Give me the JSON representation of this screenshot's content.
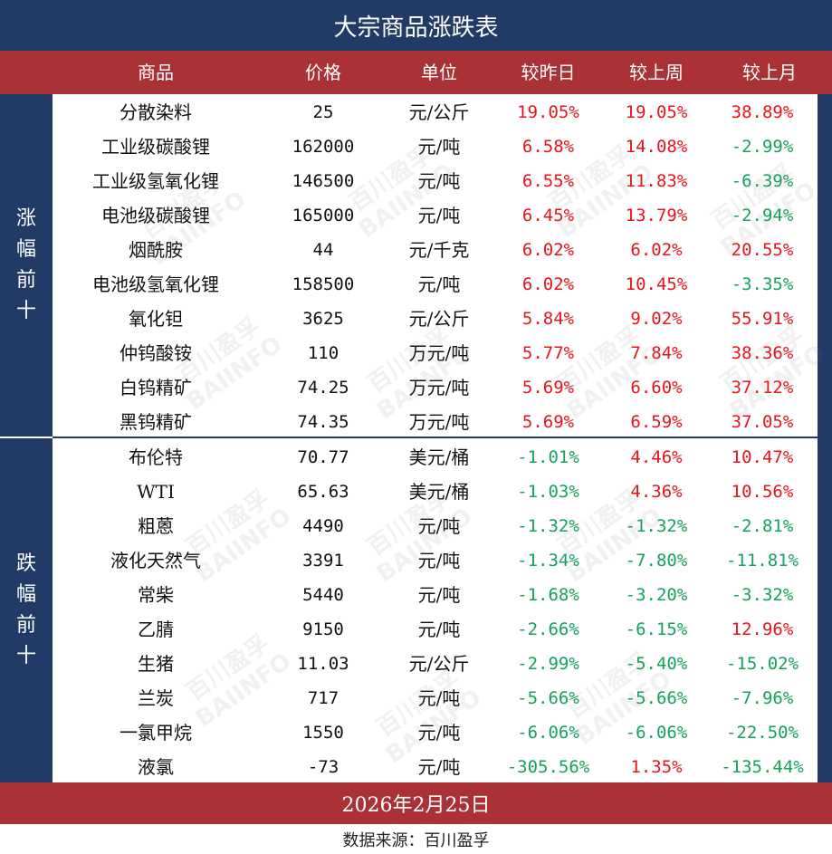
{
  "title": "大宗商品涨跌表",
  "headers": [
    "商品",
    "价格",
    "单位",
    "较昨日",
    "较上周",
    "较上月"
  ],
  "groups": [
    {
      "label": [
        "涨",
        "幅",
        "前",
        "十"
      ]
    },
    {
      "label": [
        "跌",
        "幅",
        "前",
        "十"
      ]
    }
  ],
  "colors": {
    "up": "#e8141b",
    "down": "#15a35a",
    "navy": "#223a66",
    "red": "#aa3135"
  },
  "rows": [
    {
      "name": "分散染料",
      "price": "25",
      "unit": "元/公斤",
      "d": "19.05%",
      "w": "19.05%",
      "m": "38.89%"
    },
    {
      "name": "工业级碳酸锂",
      "price": "162000",
      "unit": "元/吨",
      "d": "6.58%",
      "w": "14.08%",
      "m": "-2.99%"
    },
    {
      "name": "工业级氢氧化锂",
      "price": "146500",
      "unit": "元/吨",
      "d": "6.55%",
      "w": "11.83%",
      "m": "-6.39%"
    },
    {
      "name": "电池级碳酸锂",
      "price": "165000",
      "unit": "元/吨",
      "d": "6.45%",
      "w": "13.79%",
      "m": "-2.94%"
    },
    {
      "name": "烟酰胺",
      "price": "44",
      "unit": "元/千克",
      "d": "6.02%",
      "w": "6.02%",
      "m": "20.55%"
    },
    {
      "name": "电池级氢氧化锂",
      "price": "158500",
      "unit": "元/吨",
      "d": "6.02%",
      "w": "10.45%",
      "m": "-3.35%"
    },
    {
      "name": "氧化钽",
      "price": "3625",
      "unit": "元/公斤",
      "d": "5.84%",
      "w": "9.02%",
      "m": "55.91%"
    },
    {
      "name": "仲钨酸铵",
      "price": "110",
      "unit": "万元/吨",
      "d": "5.77%",
      "w": "7.84%",
      "m": "38.36%"
    },
    {
      "name": "白钨精矿",
      "price": "74.25",
      "unit": "万元/吨",
      "d": "5.69%",
      "w": "6.60%",
      "m": "37.12%"
    },
    {
      "name": "黑钨精矿",
      "price": "74.35",
      "unit": "万元/吨",
      "d": "5.69%",
      "w": "6.59%",
      "m": "37.05%"
    },
    {
      "name": "布伦特",
      "price": "70.77",
      "unit": "美元/桶",
      "d": "-1.01%",
      "w": "4.46%",
      "m": "10.47%"
    },
    {
      "name": "WTI",
      "price": "65.63",
      "unit": "美元/桶",
      "d": "-1.03%",
      "w": "4.36%",
      "m": "10.56%"
    },
    {
      "name": "粗蒽",
      "price": "4490",
      "unit": "元/吨",
      "d": "-1.32%",
      "w": "-1.32%",
      "m": "-2.81%"
    },
    {
      "name": "液化天然气",
      "price": "3391",
      "unit": "元/吨",
      "d": "-1.34%",
      "w": "-7.80%",
      "m": "-11.81%"
    },
    {
      "name": "常柴",
      "price": "5440",
      "unit": "元/吨",
      "d": "-1.68%",
      "w": "-3.20%",
      "m": "-3.32%"
    },
    {
      "name": "乙腈",
      "price": "9150",
      "unit": "元/吨",
      "d": "-2.66%",
      "w": "-6.15%",
      "m": "12.96%"
    },
    {
      "name": "生猪",
      "price": "11.03",
      "unit": "元/公斤",
      "d": "-2.99%",
      "w": "-5.40%",
      "m": "-15.02%"
    },
    {
      "name": "兰炭",
      "price": "717",
      "unit": "元/吨",
      "d": "-5.66%",
      "w": "-5.66%",
      "m": "-7.96%"
    },
    {
      "name": "一氯甲烷",
      "price": "1550",
      "unit": "元/吨",
      "d": "-6.06%",
      "w": "-6.06%",
      "m": "-22.50%"
    },
    {
      "name": "液氯",
      "price": "-73",
      "unit": "元/吨",
      "d": "-305.56%",
      "w": "1.35%",
      "m": "-135.44%"
    }
  ],
  "date": "2026年2月25日",
  "source": "数据来源：百川盈孚",
  "watermark": {
    "cn": "百川盈孚",
    "en": "BAIINFO"
  }
}
